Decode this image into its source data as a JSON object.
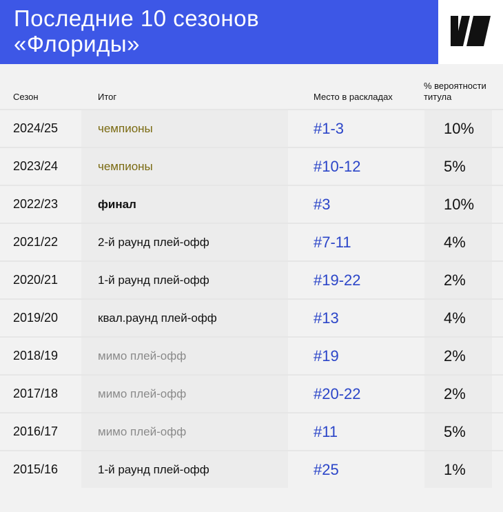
{
  "header": {
    "title_line1": "Последние 10 сезонов",
    "title_line2": "«Флориды»",
    "logo_icon": "brand-logo-icon",
    "accent_color": "#3d57e6"
  },
  "table": {
    "columns": {
      "season": "Сезон",
      "result": "Итог",
      "place": "Место в раскладах",
      "prob_line1": "% вероятности",
      "prob_line2": "титула"
    },
    "rows": [
      {
        "season": "2024/25",
        "result": "чемпионы",
        "kind": "champ",
        "place": "#1-3",
        "prob": "10%"
      },
      {
        "season": "2023/24",
        "result": "чемпионы",
        "kind": "champ",
        "place": "#10-12",
        "prob": "5%"
      },
      {
        "season": "2022/23",
        "result": "финал",
        "kind": "final",
        "place": "#3",
        "prob": "10%"
      },
      {
        "season": "2021/22",
        "result": "2-й раунд плей-офф",
        "kind": "playoff",
        "place": "#7-11",
        "prob": "4%"
      },
      {
        "season": "2020/21",
        "result": "1-й раунд плей-офф",
        "kind": "playoff",
        "place": "#19-22",
        "prob": "2%"
      },
      {
        "season": "2019/20",
        "result": "квал.раунд плей-офф",
        "kind": "playoff",
        "place": "#13",
        "prob": "4%"
      },
      {
        "season": "2018/19",
        "result": "мимо плей-офф",
        "kind": "miss",
        "place": "#19",
        "prob": "2%"
      },
      {
        "season": "2017/18",
        "result": "мимо плей-офф",
        "kind": "miss",
        "place": "#20-22",
        "prob": "2%"
      },
      {
        "season": "2016/17",
        "result": "мимо плей-офф",
        "kind": "miss",
        "place": "#11",
        "prob": "5%"
      },
      {
        "season": "2015/16",
        "result": "1-й раунд плей-офф",
        "kind": "playoff",
        "place": "#25",
        "prob": "1%"
      }
    ]
  }
}
